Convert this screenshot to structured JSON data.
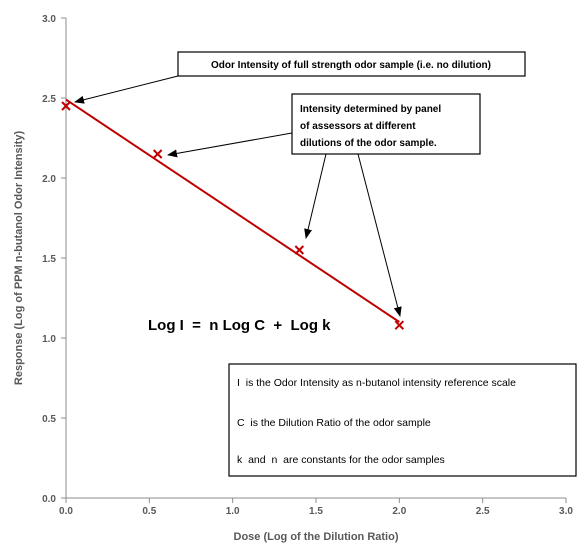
{
  "chart_data": {
    "type": "scatter",
    "xlabel": "Dose (Log of the Dilution Ratio)",
    "ylabel": "Response (Log of PPM n-butanol Odor Intensity)",
    "xlim": [
      0,
      3
    ],
    "ylim": [
      0,
      3
    ],
    "x_ticks": [
      "0.0",
      "0.5",
      "1.0",
      "1.5",
      "2.0",
      "2.5",
      "3.0"
    ],
    "y_ticks": [
      "0.0",
      "0.5",
      "1.0",
      "1.5",
      "2.0",
      "2.5",
      "3.0"
    ],
    "grid": false,
    "series": [
      {
        "marker": "x",
        "color": "#c00000",
        "points": [
          {
            "x": 0.0,
            "y": 2.45
          },
          {
            "x": 0.55,
            "y": 2.15
          },
          {
            "x": 1.4,
            "y": 1.55
          },
          {
            "x": 2.0,
            "y": 1.08
          }
        ]
      }
    ],
    "trendline": {
      "x": [
        0.0,
        2.0
      ],
      "y": [
        2.49,
        1.1
      ],
      "color": "#c00000"
    },
    "equation": "Log I  =  n Log C  +  Log k",
    "callouts": {
      "full_strength": "Odor Intensity of full strength odor sample (i.e. no dilution)",
      "panel": [
        "Intensity determined by panel",
        "of assessors at different",
        "dilutions of the odor sample."
      ]
    },
    "legend_box": [
      "I  is the Odor Intensity as n-butanol intensity reference scale",
      "C  is the Dilution Ratio of the odor sample",
      "k  and  n  are constants for the odor samples"
    ]
  }
}
